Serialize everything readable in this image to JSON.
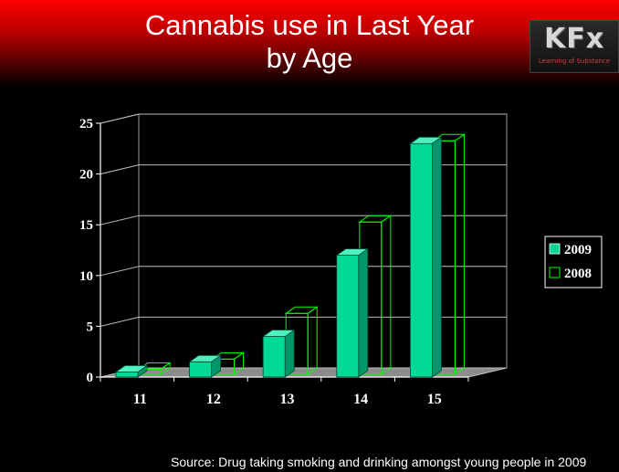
{
  "title_line1": "Cannabis use in Last Year",
  "title_line2": "by Age",
  "logo": {
    "mark": "KFx",
    "tagline": "Learning of Substance"
  },
  "source": "Source: Drug taking smoking and drinking amongst young people in 2009",
  "colors": {
    "series_2009": "#00d896",
    "series_2008_outline": "#00ff00",
    "floor": "#8c8c8c",
    "header": "#ff0000"
  },
  "chart_data": {
    "type": "bar",
    "categories": [
      "11",
      "12",
      "13",
      "14",
      "15"
    ],
    "series": [
      {
        "name": "2009",
        "values": [
          0.5,
          1.5,
          4,
          12,
          23
        ]
      },
      {
        "name": "2008",
        "values": [
          0.5,
          1.5,
          6,
          15,
          23
        ]
      }
    ],
    "ylim": [
      0,
      25
    ],
    "yticks": [
      "0",
      "5",
      "10",
      "15",
      "20",
      "25"
    ],
    "grid": true,
    "legend": "right"
  }
}
